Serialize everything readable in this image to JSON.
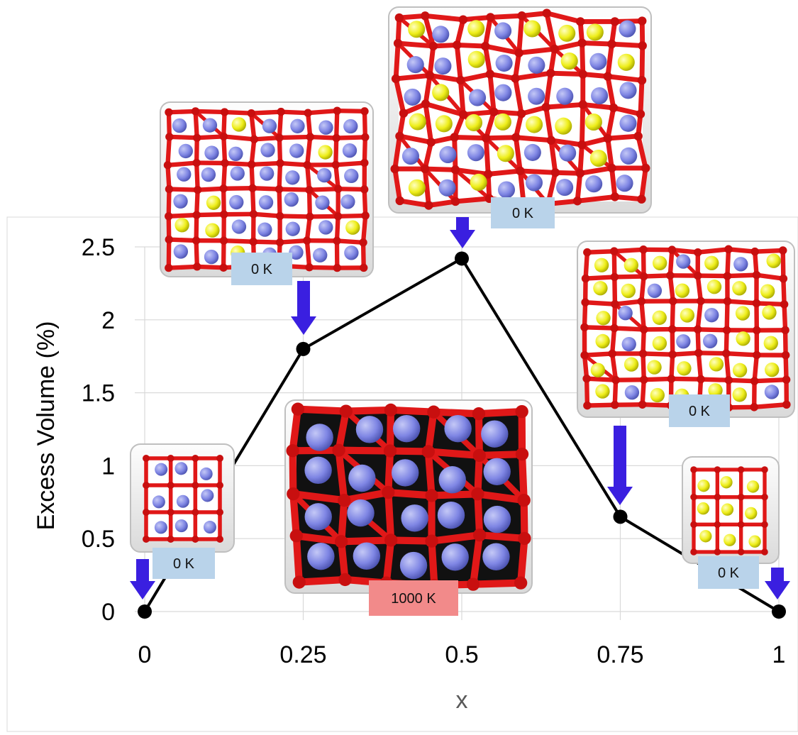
{
  "chart_data": {
    "type": "line",
    "xlabel": "x",
    "ylabel": "Excess Volume (%)",
    "xlim": [
      0,
      1
    ],
    "ylim": [
      0,
      2.5
    ],
    "xticks": [
      "0",
      "0.25",
      "0.5",
      "0.75",
      "1"
    ],
    "yticks": [
      "0",
      "0.5",
      "1",
      "1.5",
      "2",
      "2.5"
    ],
    "grid": true,
    "series": [
      {
        "x": [
          0,
          0.25,
          0.5,
          0.75,
          1
        ],
        "values": [
          0,
          1.8,
          2.42,
          0.65,
          0
        ]
      }
    ],
    "annotations": [
      {
        "label": "0 K",
        "x": 0,
        "type": "structure-inset",
        "atoms": "blue"
      },
      {
        "label": "0 K",
        "x": 0.25,
        "type": "structure-inset",
        "atoms": "mixed-blue"
      },
      {
        "label": "0 K",
        "x": 0.5,
        "type": "structure-inset",
        "atoms": "mixed"
      },
      {
        "label": "0 K",
        "x": 0.75,
        "type": "structure-inset",
        "atoms": "mixed-yellow"
      },
      {
        "label": "0 K",
        "x": 1,
        "type": "structure-inset",
        "atoms": "yellow"
      },
      {
        "label": "1000 K",
        "x": 0.36,
        "type": "structure-inset",
        "atoms": "blue-dark"
      }
    ],
    "colors": {
      "line": "#000000",
      "arrow": "#3a1fe0",
      "lattice": "#e01818",
      "blue_atom": "#7f86e4",
      "yellow_atom": "#f0f01e",
      "label_cold": "#b9d3ea",
      "label_hot": "#f28a8a"
    }
  }
}
